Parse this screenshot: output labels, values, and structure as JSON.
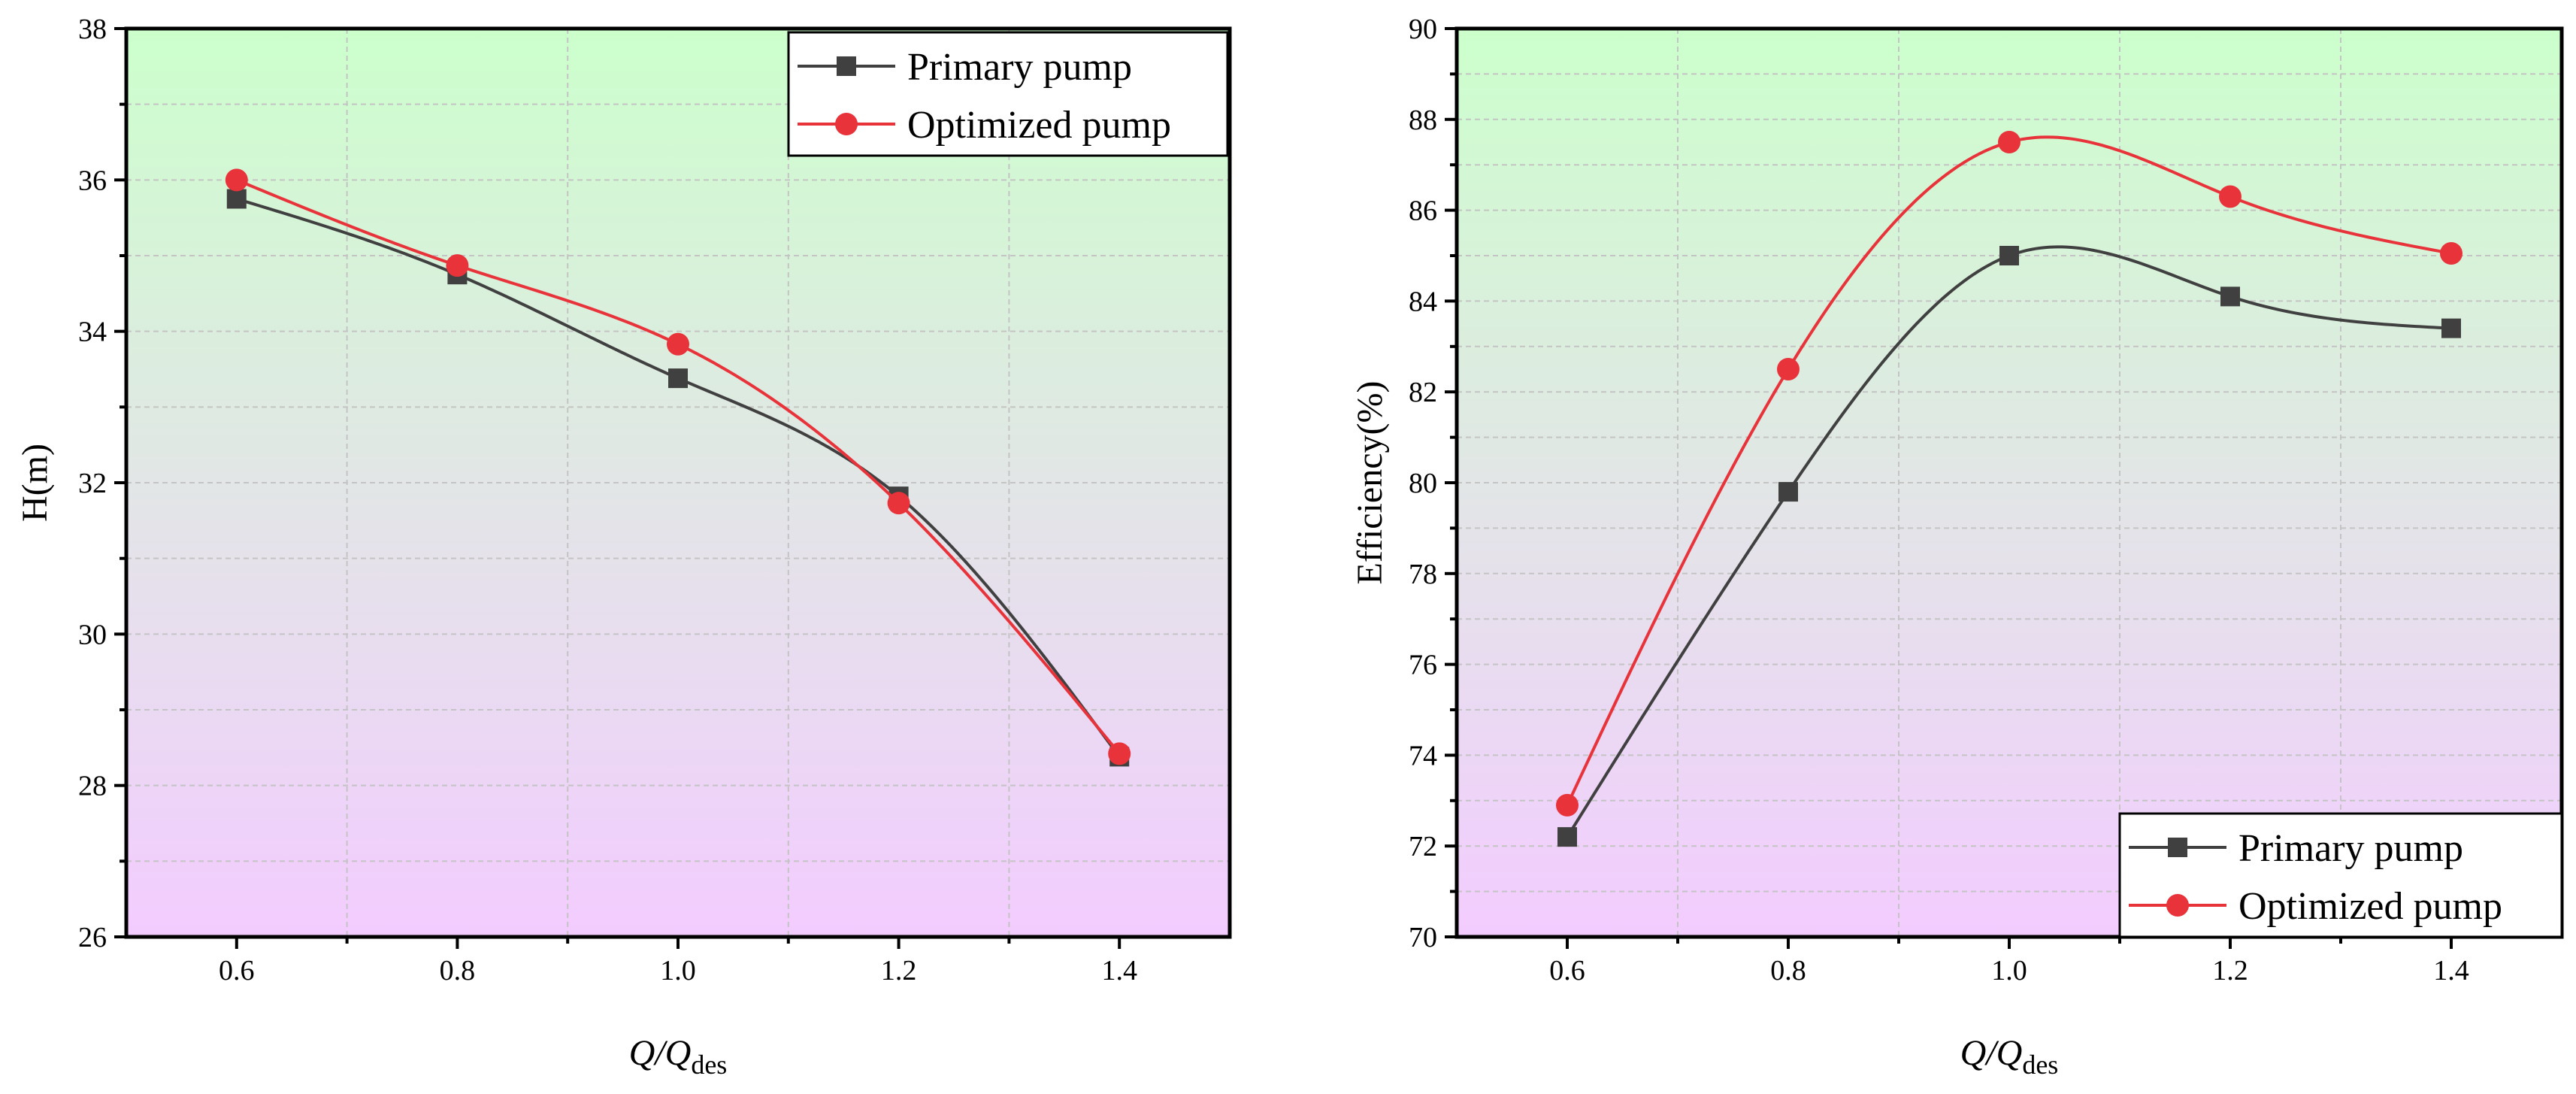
{
  "chart_data": [
    {
      "type": "line",
      "title": "",
      "xlabel": "Q/Qdes",
      "xlabel_parts": {
        "main": "Q/Q",
        "sub": "des"
      },
      "ylabel": "H(m)",
      "xlim": [
        0.5,
        1.5
      ],
      "ylim": [
        26,
        38
      ],
      "xticks": [
        0.6,
        0.8,
        1.0,
        1.2,
        1.4
      ],
      "xtick_labels": [
        "0.6",
        "0.8",
        "1.0",
        "1.2",
        "1.4"
      ],
      "yticks": [
        26,
        28,
        30,
        32,
        34,
        36,
        38
      ],
      "ytick_labels": [
        "26",
        "28",
        "30",
        "32",
        "34",
        "36",
        "38"
      ],
      "grid": true,
      "legend_position": "top-right",
      "x": [
        0.6,
        0.8,
        1.0,
        1.2,
        1.4
      ],
      "series": [
        {
          "name": "Primary pump",
          "marker": "square",
          "color": "#404040",
          "values": [
            35.75,
            34.75,
            33.38,
            31.82,
            28.38
          ]
        },
        {
          "name": "Optimized pump",
          "marker": "circle",
          "color": "#e8333a",
          "values": [
            36.0,
            34.87,
            33.83,
            31.73,
            28.42
          ]
        }
      ]
    },
    {
      "type": "line",
      "title": "",
      "xlabel": "Q/Qdes",
      "xlabel_parts": {
        "main": "Q/Q",
        "sub": "des"
      },
      "ylabel": "Efficiency(%)",
      "xlim": [
        0.5,
        1.5
      ],
      "ylim": [
        70,
        90
      ],
      "xticks": [
        0.6,
        0.8,
        1.0,
        1.2,
        1.4
      ],
      "xtick_labels": [
        "0.6",
        "0.8",
        "1.0",
        "1.2",
        "1.4"
      ],
      "yticks": [
        70,
        72,
        74,
        76,
        78,
        80,
        82,
        84,
        86,
        88,
        90
      ],
      "ytick_labels": [
        "70",
        "72",
        "74",
        "76",
        "78",
        "80",
        "82",
        "84",
        "86",
        "88",
        "90"
      ],
      "grid": true,
      "legend_position": "bottom-right",
      "x": [
        0.6,
        0.8,
        1.0,
        1.2,
        1.4
      ],
      "series": [
        {
          "name": "Primary pump",
          "marker": "square",
          "color": "#404040",
          "values": [
            72.2,
            79.8,
            85.0,
            84.1,
            83.4
          ]
        },
        {
          "name": "Optimized pump",
          "marker": "circle",
          "color": "#e8333a",
          "values": [
            72.9,
            82.5,
            87.5,
            86.3,
            85.05
          ]
        }
      ]
    }
  ],
  "colors": {
    "gradient_top": "#ccffcc",
    "gradient_mid": "#e2e6e6",
    "gradient_bottom": "#f3ccff",
    "grid": "#c8c8c8"
  }
}
